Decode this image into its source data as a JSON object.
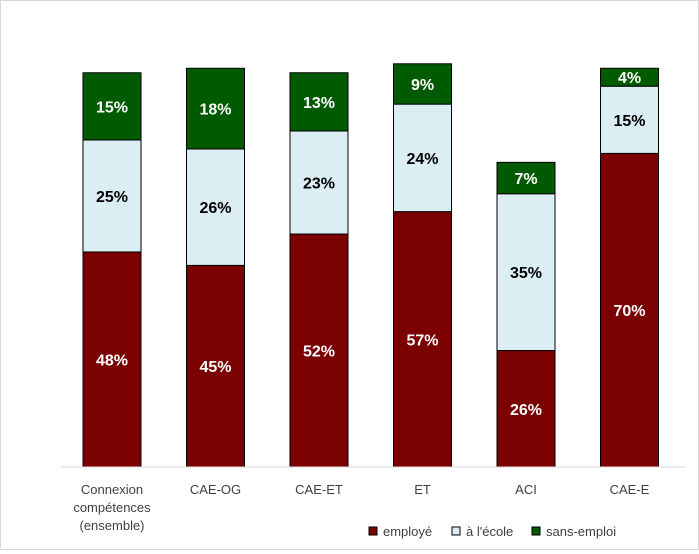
{
  "chart_data": {
    "type": "bar",
    "stacked": true,
    "normalized": true,
    "title": "",
    "xlabel": "",
    "ylabel": "",
    "ylim": [
      0,
      100
    ],
    "grid": false,
    "legend_position": "bottom-right",
    "categories": [
      [
        "Connexion",
        "compétences",
        "(ensemble)"
      ],
      [
        "CAE-OG"
      ],
      [
        "CAE-ET"
      ],
      [
        "ET"
      ],
      [
        "ACI"
      ],
      [
        "CAE-E"
      ]
    ],
    "series": [
      {
        "name": "employé",
        "color": "#7b0000",
        "label_color": "#ffffff",
        "values": [
          48,
          45,
          52,
          57,
          26,
          70
        ],
        "labels": [
          "48%",
          "45%",
          "52%",
          "57%",
          "26%",
          "70%"
        ]
      },
      {
        "name": "à l'école",
        "color": "#dbeef4",
        "label_color": "#000000",
        "values": [
          25,
          26,
          23,
          24,
          35,
          15
        ],
        "labels": [
          "25%",
          "26%",
          "23%",
          "24%",
          "35%",
          "15%"
        ]
      },
      {
        "name": "sans-emploi",
        "color": "#005a00",
        "label_color": "#ffffff",
        "values": [
          15,
          18,
          13,
          9,
          7,
          4
        ],
        "labels": [
          "15%",
          "18%",
          "13%",
          "9%",
          "7%",
          "4%"
        ]
      }
    ]
  }
}
